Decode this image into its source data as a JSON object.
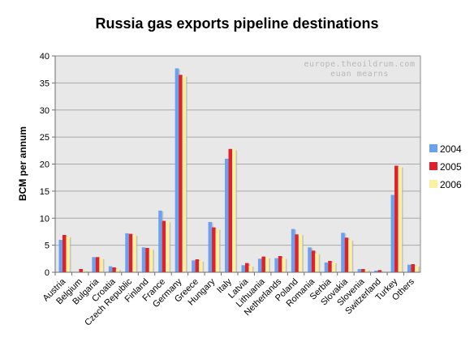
{
  "chart_data": {
    "type": "bar",
    "title": "Russia gas exports pipeline destinations",
    "xlabel": "",
    "ylabel": "BCM per annum",
    "ylim": [
      0,
      40
    ],
    "yticks": [
      0,
      5,
      10,
      15,
      20,
      25,
      30,
      35,
      40
    ],
    "grid": true,
    "legend_position": "right",
    "watermark_lines": [
      "europe.theoildrum.com",
      "euan mearns"
    ],
    "categories": [
      "Austria",
      "Belgium",
      "Bulgaria",
      "Croatia",
      "Czech Republic",
      "Finland",
      "France",
      "Germany",
      "Greece",
      "Hungary",
      "Italy",
      "Latvia",
      "Lithuania",
      "Netherlands",
      "Poland",
      "Romania",
      "Serbia",
      "Slovakia",
      "Slovenia",
      "Switzerland",
      "Turkey",
      "Others"
    ],
    "series": [
      {
        "name": "2004",
        "color": "#6aa2f0",
        "values": [
          6.0,
          0.0,
          2.8,
          1.1,
          7.2,
          4.6,
          11.4,
          37.7,
          2.2,
          9.3,
          21.0,
          1.3,
          2.5,
          2.6,
          8.0,
          4.6,
          1.8,
          7.3,
          0.6,
          0.3,
          14.3,
          1.4
        ]
      },
      {
        "name": "2005",
        "color": "#e0202a",
        "values": [
          6.9,
          0.6,
          2.8,
          0.9,
          7.1,
          4.5,
          9.5,
          36.5,
          2.4,
          8.3,
          22.8,
          1.7,
          2.9,
          3.0,
          7.0,
          4.0,
          2.1,
          6.4,
          0.6,
          0.4,
          19.7,
          1.5
        ]
      },
      {
        "name": "2006",
        "color": "#faf0a0",
        "values": [
          6.6,
          0.3,
          2.6,
          0.6,
          6.9,
          4.3,
          9.4,
          36.3,
          2.1,
          8.0,
          22.7,
          1.2,
          2.7,
          2.6,
          7.0,
          3.5,
          1.8,
          6.0,
          0.5,
          0.1,
          19.5,
          1.2
        ]
      }
    ]
  }
}
